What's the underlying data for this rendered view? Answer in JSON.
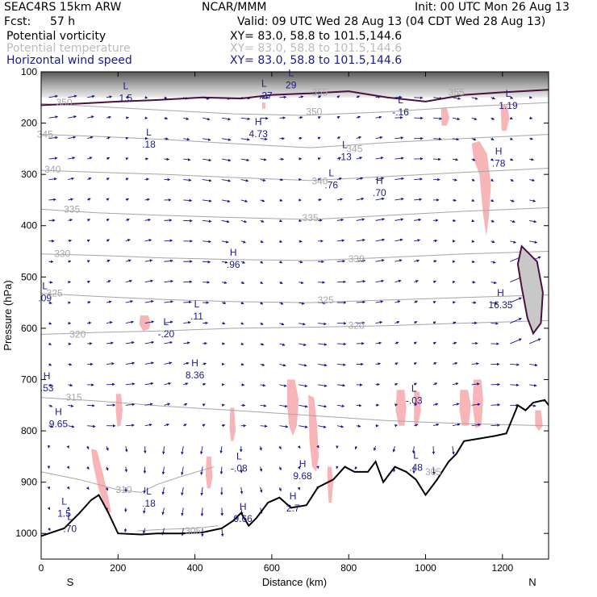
{
  "header": {
    "model": "SEAC4RS 15km ARW",
    "org": "NCAR/MMM",
    "init": "Init: 00 UTC Mon 26 Aug 13",
    "fcst_label": "Fcst:",
    "fcst_value": "57 h",
    "valid": "Valid: 09 UTC Wed 28 Aug 13 (04 CDT Wed 28 Aug 13)",
    "fields": [
      {
        "name": "Potential vorticity",
        "xy": "XY=  83.0, 58.8 to 101.5,144.6"
      },
      {
        "name": "Potential temperature",
        "xy": "XY=  83.0, 58.8 to 101.5,144.6"
      },
      {
        "name": "Horizontal wind speed",
        "xy": "XY=  83.0, 58.8 to 101.5,144.6"
      }
    ]
  },
  "colors": {
    "pv_fill": "#f7b5b8",
    "theta_line": "#a6a6a6",
    "terrain": "#000000",
    "wind_vector": "#1a1a8c",
    "pv_contour": "#4a1040",
    "label_text": "#1a1a8c"
  },
  "chart_data": {
    "type": "vertical cross-section",
    "xlabel": "Distance (km)",
    "ylabel": "Pressure (hPa)",
    "xlim": [
      0,
      1320
    ],
    "ylim": [
      1050,
      100
    ],
    "x_ticks": [
      "0",
      "200",
      "400",
      "600",
      "800",
      "1000",
      "1200"
    ],
    "y_ticks": [
      "100",
      "200",
      "300",
      "400",
      "500",
      "600",
      "700",
      "800",
      "900",
      "1000"
    ],
    "x_ends": {
      "left": "S",
      "right": "N"
    },
    "terrain": [
      [
        0,
        1005
      ],
      [
        60,
        990
      ],
      [
        100,
        960
      ],
      [
        130,
        935
      ],
      [
        150,
        925
      ],
      [
        175,
        960
      ],
      [
        200,
        1000
      ],
      [
        260,
        1002
      ],
      [
        300,
        1000
      ],
      [
        360,
        1000
      ],
      [
        420,
        998
      ],
      [
        470,
        990
      ],
      [
        500,
        975
      ],
      [
        520,
        960
      ],
      [
        540,
        985
      ],
      [
        560,
        970
      ],
      [
        590,
        940
      ],
      [
        620,
        930
      ],
      [
        650,
        950
      ],
      [
        690,
        945
      ],
      [
        720,
        910
      ],
      [
        760,
        895
      ],
      [
        790,
        870
      ],
      [
        815,
        880
      ],
      [
        850,
        880
      ],
      [
        870,
        860
      ],
      [
        890,
        900
      ],
      [
        920,
        870
      ],
      [
        950,
        880
      ],
      [
        975,
        895
      ],
      [
        1000,
        925
      ],
      [
        1030,
        895
      ],
      [
        1060,
        860
      ],
      [
        1080,
        845
      ],
      [
        1100,
        820
      ],
      [
        1140,
        815
      ],
      [
        1180,
        810
      ],
      [
        1210,
        805
      ],
      [
        1240,
        750
      ],
      [
        1260,
        760
      ],
      [
        1280,
        745
      ],
      [
        1310,
        740
      ],
      [
        1320,
        750
      ]
    ],
    "theta_contours": [
      {
        "label": "350",
        "pts": [
          [
            0,
            162
          ],
          [
            150,
            168
          ],
          [
            320,
            175
          ],
          [
            500,
            182
          ],
          [
            680,
            185
          ],
          [
            900,
            178
          ],
          [
            1100,
            168
          ],
          [
            1320,
            160
          ]
        ]
      },
      {
        "label": "345",
        "pts": [
          [
            0,
            222
          ],
          [
            150,
            226
          ],
          [
            320,
            232
          ],
          [
            500,
            240
          ],
          [
            700,
            248
          ],
          [
            900,
            238
          ],
          [
            1100,
            230
          ],
          [
            1320,
            222
          ]
        ]
      },
      {
        "label": "340",
        "pts": [
          [
            0,
            292
          ],
          [
            150,
            296
          ],
          [
            320,
            300
          ],
          [
            500,
            306
          ],
          [
            700,
            312
          ],
          [
            900,
            304
          ],
          [
            1100,
            296
          ],
          [
            1320,
            288
          ]
        ]
      },
      {
        "label": "335",
        "pts": [
          [
            0,
            368
          ],
          [
            150,
            375
          ],
          [
            320,
            380
          ],
          [
            500,
            384
          ],
          [
            700,
            388
          ],
          [
            900,
            380
          ],
          [
            1100,
            372
          ],
          [
            1320,
            365
          ]
        ]
      },
      {
        "label": "330",
        "pts": [
          [
            0,
            455
          ],
          [
            150,
            458
          ],
          [
            320,
            463
          ],
          [
            500,
            466
          ],
          [
            700,
            468
          ],
          [
            900,
            462
          ],
          [
            1100,
            455
          ],
          [
            1320,
            450
          ]
        ]
      },
      {
        "label": "325",
        "pts": [
          [
            0,
            532
          ],
          [
            150,
            538
          ],
          [
            320,
            544
          ],
          [
            500,
            548
          ],
          [
            700,
            550
          ],
          [
            900,
            545
          ],
          [
            1100,
            540
          ],
          [
            1320,
            535
          ]
        ]
      },
      {
        "label": "320",
        "pts": [
          [
            0,
            612
          ],
          [
            150,
            608
          ],
          [
            320,
            605
          ],
          [
            500,
            600
          ],
          [
            700,
            598
          ],
          [
            900,
            595
          ],
          [
            1100,
            590
          ],
          [
            1320,
            585
          ]
        ]
      },
      {
        "label": "315",
        "pts": [
          [
            0,
            735
          ],
          [
            150,
            742
          ],
          [
            320,
            752
          ],
          [
            500,
            760
          ],
          [
            700,
            770
          ],
          [
            900,
            780
          ],
          [
            1100,
            786
          ],
          [
            1320,
            790
          ]
        ]
      },
      {
        "label": "310",
        "pts": [
          [
            0,
            880
          ],
          [
            100,
            895
          ],
          [
            200,
            915
          ],
          [
            260,
            920
          ],
          [
            300,
            905
          ],
          [
            360,
            890
          ],
          [
            450,
            870
          ]
        ]
      },
      {
        "label": "305",
        "pts": [
          [
            250,
            995
          ],
          [
            320,
            992
          ],
          [
            400,
            990
          ],
          [
            460,
            985
          ]
        ]
      }
    ],
    "pv_regions": [
      [
        [
          195,
          728
        ],
        [
          208,
          728
        ],
        [
          212,
          760
        ],
        [
          207,
          790
        ],
        [
          198,
          792
        ],
        [
          194,
          760
        ]
      ],
      [
        [
          130,
          835
        ],
        [
          145,
          838
        ],
        [
          160,
          880
        ],
        [
          175,
          930
        ],
        [
          182,
          958
        ],
        [
          172,
          960
        ],
        [
          150,
          915
        ],
        [
          135,
          865
        ]
      ],
      [
        [
          258,
          575
        ],
        [
          278,
          575
        ],
        [
          285,
          590
        ],
        [
          280,
          602
        ],
        [
          265,
          605
        ],
        [
          255,
          592
        ]
      ],
      [
        [
          575,
          160
        ],
        [
          583,
          160
        ],
        [
          583,
          172
        ],
        [
          575,
          172
        ]
      ],
      [
        [
          430,
          850
        ],
        [
          442,
          850
        ],
        [
          446,
          890
        ],
        [
          440,
          912
        ],
        [
          432,
          912
        ],
        [
          428,
          885
        ]
      ],
      [
        [
          492,
          755
        ],
        [
          502,
          755
        ],
        [
          506,
          800
        ],
        [
          500,
          820
        ],
        [
          494,
          820
        ],
        [
          490,
          795
        ]
      ],
      [
        [
          640,
          700
        ],
        [
          660,
          700
        ],
        [
          670,
          740
        ],
        [
          665,
          790
        ],
        [
          655,
          810
        ],
        [
          645,
          790
        ],
        [
          640,
          750
        ]
      ],
      [
        [
          695,
          730
        ],
        [
          710,
          735
        ],
        [
          718,
          790
        ],
        [
          722,
          850
        ],
        [
          716,
          880
        ],
        [
          705,
          870
        ],
        [
          698,
          820
        ]
      ],
      [
        [
          745,
          870
        ],
        [
          755,
          870
        ],
        [
          760,
          900
        ],
        [
          755,
          940
        ],
        [
          748,
          940
        ],
        [
          745,
          905
        ]
      ],
      [
        [
          925,
          720
        ],
        [
          945,
          720
        ],
        [
          950,
          755
        ],
        [
          945,
          790
        ],
        [
          930,
          790
        ],
        [
          922,
          760
        ]
      ],
      [
        [
          970,
          720
        ],
        [
          985,
          725
        ],
        [
          988,
          760
        ],
        [
          980,
          790
        ],
        [
          970,
          785
        ]
      ],
      [
        [
          1040,
          170
        ],
        [
          1055,
          170
        ],
        [
          1062,
          190
        ],
        [
          1055,
          205
        ],
        [
          1042,
          205
        ]
      ],
      [
        [
          1090,
          720
        ],
        [
          1110,
          720
        ],
        [
          1118,
          750
        ],
        [
          1112,
          790
        ],
        [
          1095,
          790
        ],
        [
          1088,
          760
        ]
      ],
      [
        [
          1120,
          240
        ],
        [
          1140,
          235
        ],
        [
          1160,
          260
        ],
        [
          1170,
          320
        ],
        [
          1165,
          380
        ],
        [
          1158,
          420
        ],
        [
          1150,
          380
        ],
        [
          1140,
          300
        ],
        [
          1125,
          270
        ]
      ],
      [
        [
          1125,
          700
        ],
        [
          1145,
          700
        ],
        [
          1150,
          740
        ],
        [
          1145,
          790
        ],
        [
          1130,
          795
        ],
        [
          1122,
          750
        ]
      ],
      [
        [
          1195,
          165
        ],
        [
          1212,
          165
        ],
        [
          1218,
          190
        ],
        [
          1210,
          215
        ],
        [
          1198,
          215
        ]
      ],
      [
        [
          1285,
          760
        ],
        [
          1300,
          760
        ],
        [
          1305,
          790
        ],
        [
          1295,
          800
        ],
        [
          1285,
          790
        ]
      ]
    ],
    "pv_extrema": [
      {
        "type": "L",
        "value": "1.5",
        "x": 60,
        "p": 955
      },
      {
        "type": "L",
        "value": ".70",
        "x": 75,
        "p": 985
      },
      {
        "type": "L",
        "value": "1.5",
        "x": 220,
        "p": 145
      },
      {
        "type": "L",
        "value": "-.27",
        "x": 580,
        "p": 140
      },
      {
        "type": "L",
        "value": "29",
        "x": 650,
        "p": 120
      },
      {
        "type": "L",
        "value": "-.16",
        "x": 935,
        "p": 172
      },
      {
        "type": "L",
        "value": "1.19",
        "x": 1215,
        "p": 160
      },
      {
        "type": "L",
        "value": ".18",
        "x": 280,
        "p": 235
      },
      {
        "type": "H",
        "value": "4.73",
        "x": 565,
        "p": 215
      },
      {
        "type": "L",
        "value": ".13",
        "x": 790,
        "p": 260
      },
      {
        "type": "L",
        "value": ".76",
        "x": 755,
        "p": 315
      },
      {
        "type": "H",
        "value": ".70",
        "x": 880,
        "p": 330
      },
      {
        "type": "H",
        "value": ".78",
        "x": 1190,
        "p": 272
      },
      {
        "type": "H",
        "value": ".96",
        "x": 500,
        "p": 470
      },
      {
        "type": "L",
        "value": ".09",
        "x": 10,
        "p": 535
      },
      {
        "type": "L",
        "value": ".11",
        "x": 405,
        "p": 570
      },
      {
        "type": "L",
        "value": "-.20",
        "x": 325,
        "p": 605
      },
      {
        "type": "H",
        "value": "16.35",
        "x": 1195,
        "p": 548
      },
      {
        "type": "H",
        "value": "8.36",
        "x": 400,
        "p": 685
      },
      {
        "type": "H",
        "value": ".53",
        "x": 15,
        "p": 710
      },
      {
        "type": "L",
        "value": "-.03",
        "x": 970,
        "p": 735
      },
      {
        "type": "H",
        "value": "9.65",
        "x": 45,
        "p": 780
      },
      {
        "type": "L",
        "value": "-.08",
        "x": 515,
        "p": 867
      },
      {
        "type": "L",
        "value": ".48",
        "x": 975,
        "p": 865
      },
      {
        "type": "H",
        "value": "9.68",
        "x": 680,
        "p": 882
      },
      {
        "type": "L",
        "value": ".18",
        "x": 280,
        "p": 935
      },
      {
        "type": "H",
        "value": "9.66",
        "x": 525,
        "p": 965
      },
      {
        "type": "H",
        "value": "2.7",
        "x": 655,
        "p": 945
      }
    ],
    "theta_labels": [
      {
        "label": "350",
        "x": 60,
        "p": 160
      },
      {
        "label": "345",
        "x": 10,
        "p": 222
      },
      {
        "label": "340",
        "x": 30,
        "p": 290
      },
      {
        "label": "335",
        "x": 80,
        "p": 368
      },
      {
        "label": "330",
        "x": 55,
        "p": 455
      },
      {
        "label": "325",
        "x": 35,
        "p": 532
      },
      {
        "label": "320",
        "x": 95,
        "p": 612
      },
      {
        "label": "315",
        "x": 85,
        "p": 735
      },
      {
        "label": "310",
        "x": 215,
        "p": 915
      },
      {
        "label": "305",
        "x": 395,
        "p": 995
      },
      {
        "label": "355",
        "x": 725,
        "p": 140
      },
      {
        "label": "350",
        "x": 710,
        "p": 178
      },
      {
        "label": "345",
        "x": 815,
        "p": 250
      },
      {
        "label": "340",
        "x": 725,
        "p": 313
      },
      {
        "label": "335",
        "x": 700,
        "p": 385
      },
      {
        "label": "330",
        "x": 820,
        "p": 465
      },
      {
        "label": "325",
        "x": 740,
        "p": 545
      },
      {
        "label": "320",
        "x": 820,
        "p": 595
      },
      {
        "label": "355",
        "x": 1080,
        "p": 140
      },
      {
        "label": "305",
        "x": 1020,
        "p": 880
      }
    ]
  }
}
